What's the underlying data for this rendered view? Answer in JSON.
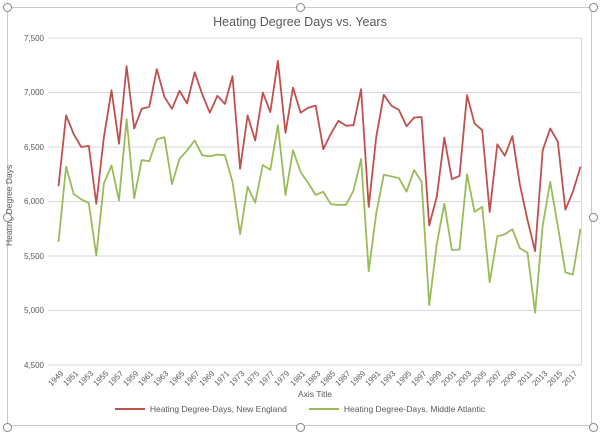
{
  "window": {
    "selection_handles": 8
  },
  "colors": {
    "text": "#595959",
    "gridline": "#d9d9d9",
    "frame_border": "#c9c9c9",
    "background": "#ffffff",
    "series_new_england": "#c0504d",
    "series_middle_atlantic": "#9bbb59"
  },
  "chart_data": {
    "type": "line",
    "title": "Heating Degree Days vs. Years",
    "xlabel": "Axis Title",
    "ylabel": "Heating Degree Days",
    "ylim": [
      4500,
      7500
    ],
    "grid": "horizontal",
    "legend_position": "bottom",
    "ytick_values": [
      7500,
      7000,
      6500,
      6000,
      5500,
      5000,
      4500
    ],
    "ytick_labels": [
      "7,500",
      "7,000",
      "6,500",
      "6,000",
      "5,500",
      "5,000",
      "4,500"
    ],
    "xtick_labels": [
      "1949",
      "1951",
      "1953",
      "1955",
      "1957",
      "1959",
      "1961",
      "1963",
      "1965",
      "1967",
      "1969",
      "1971",
      "1973",
      "1975",
      "1977",
      "1979",
      "1981",
      "1983",
      "1985",
      "1987",
      "1989",
      "1991",
      "1993",
      "1995",
      "1997",
      "1999",
      "2001",
      "2003",
      "2005",
      "2007",
      "2009",
      "2011",
      "2013",
      "2015",
      "2017"
    ],
    "x": [
      1949,
      1950,
      1951,
      1952,
      1953,
      1954,
      1955,
      1956,
      1957,
      1958,
      1959,
      1960,
      1961,
      1962,
      1963,
      1964,
      1965,
      1966,
      1967,
      1968,
      1969,
      1970,
      1971,
      1972,
      1973,
      1974,
      1975,
      1976,
      1977,
      1978,
      1979,
      1980,
      1981,
      1982,
      1983,
      1984,
      1985,
      1986,
      1987,
      1988,
      1989,
      1990,
      1991,
      1992,
      1993,
      1994,
      1995,
      1996,
      1997,
      1998,
      1999,
      2000,
      2001,
      2002,
      2003,
      2004,
      2005,
      2006,
      2007,
      2008,
      2009,
      2010,
      2011,
      2012,
      2013,
      2014,
      2015,
      2016,
      2017,
      2018
    ],
    "series": [
      {
        "name": "Heating Degree-Days, New England",
        "color": "#c0504d",
        "values": [
          6140,
          6790,
          6620,
          6500,
          6510,
          5980,
          6590,
          7020,
          6530,
          7240,
          6670,
          6850,
          6870,
          7215,
          6960,
          6850,
          7015,
          6900,
          7185,
          6985,
          6815,
          6970,
          6895,
          7150,
          6300,
          6790,
          6560,
          7000,
          6820,
          7290,
          6630,
          7045,
          6815,
          6860,
          6880,
          6480,
          6620,
          6740,
          6695,
          6700,
          7030,
          5950,
          6590,
          6980,
          6880,
          6840,
          6690,
          6770,
          6775,
          5780,
          6045,
          6585,
          6205,
          6235,
          6975,
          6715,
          6655,
          5905,
          6525,
          6420,
          6600,
          6150,
          5830,
          5545,
          6470,
          6670,
          6550,
          5925,
          6090,
          6320
        ]
      },
      {
        "name": "Heating Degree-Days, Middle Atlantic",
        "color": "#9bbb59",
        "values": [
          5630,
          6320,
          6070,
          6020,
          5985,
          5505,
          6165,
          6330,
          6010,
          6755,
          6030,
          6380,
          6370,
          6570,
          6590,
          6160,
          6390,
          6470,
          6560,
          6425,
          6415,
          6430,
          6425,
          6180,
          5700,
          6135,
          5990,
          6335,
          6290,
          6700,
          6060,
          6470,
          6270,
          6170,
          6060,
          6090,
          5975,
          5970,
          5970,
          6100,
          6390,
          5360,
          5890,
          6245,
          6230,
          6215,
          6090,
          6290,
          6180,
          5050,
          5610,
          5980,
          5555,
          5560,
          6250,
          5905,
          5950,
          5260,
          5680,
          5700,
          5745,
          5570,
          5530,
          4980,
          5780,
          6180,
          5775,
          5350,
          5330,
          5750
        ]
      }
    ]
  }
}
